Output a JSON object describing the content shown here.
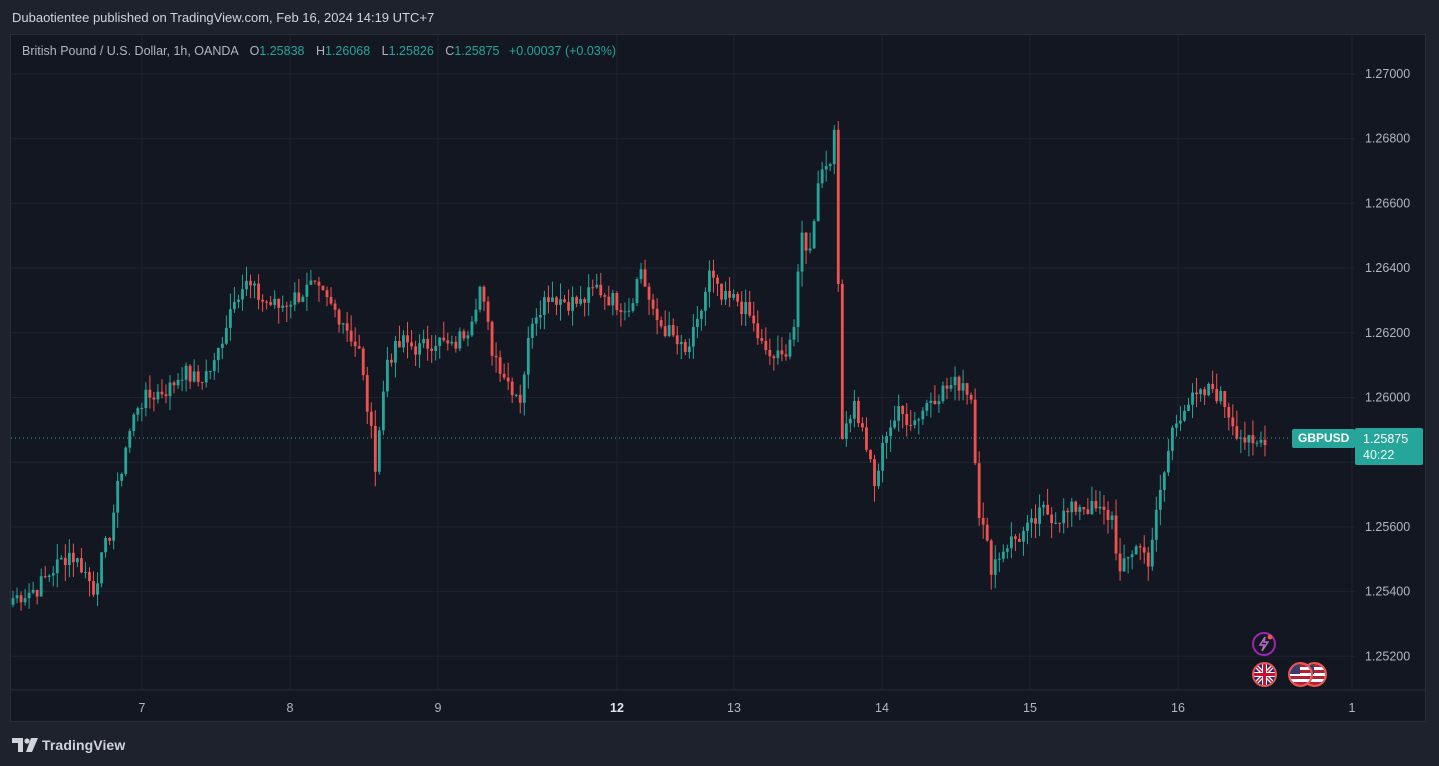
{
  "header": {
    "publish_line": "Dubaotientee published on TradingView.com, Feb 16, 2024 14:19 UTC+7"
  },
  "legend": {
    "symbol": "British Pound / U.S. Dollar, 1h, OANDA",
    "open_label": "O",
    "open": "1.25838",
    "high_label": "H",
    "high": "1.26068",
    "low_label": "L",
    "low": "1.25826",
    "close_label": "C",
    "close": "1.25875",
    "change": "+0.00037 (+0.03%)"
  },
  "price_tag": {
    "symbol": "GBPUSD",
    "price": "1.25875",
    "countdown": "40:22"
  },
  "footer": {
    "brand": "TradingView"
  },
  "colors": {
    "up": "#26a69a",
    "down": "#ef5350",
    "background": "#131722",
    "grid": "#1f2330"
  },
  "chart_data": {
    "type": "candlestick",
    "y_ticks": [
      "1.27000",
      "1.26800",
      "1.26600",
      "1.26400",
      "1.26200",
      "1.26000",
      "1.25600",
      "1.25400",
      "1.25200"
    ],
    "y_tick_values": [
      1.27,
      1.268,
      1.266,
      1.264,
      1.262,
      1.26,
      1.256,
      1.254,
      1.252
    ],
    "ylim": [
      1.2512,
      1.2717
    ],
    "x_ticks": [
      {
        "label": "7",
        "bold": false
      },
      {
        "label": "8",
        "bold": false
      },
      {
        "label": "9",
        "bold": false
      },
      {
        "label": "12",
        "bold": true
      },
      {
        "label": "13",
        "bold": false
      },
      {
        "label": "14",
        "bold": false
      },
      {
        "label": "15",
        "bold": false
      },
      {
        "label": "16",
        "bold": false
      },
      {
        "label": "1",
        "bold": false
      }
    ],
    "current_price": 1.25875,
    "anchors": [
      [
        0,
        1.2538
      ],
      [
        6,
        1.2541
      ],
      [
        10,
        1.2547
      ],
      [
        14,
        1.2552
      ],
      [
        17,
        1.2548
      ],
      [
        20,
        1.2541
      ],
      [
        24,
        1.2558
      ],
      [
        28,
        1.2585
      ],
      [
        31,
        1.2598
      ],
      [
        35,
        1.2601
      ],
      [
        39,
        1.2603
      ],
      [
        42,
        1.2608
      ],
      [
        46,
        1.2605
      ],
      [
        50,
        1.261
      ],
      [
        55,
        1.2632
      ],
      [
        58,
        1.2635
      ],
      [
        62,
        1.263
      ],
      [
        66,
        1.2628
      ],
      [
        70,
        1.2631
      ],
      [
        74,
        1.2634
      ],
      [
        77,
        1.2631
      ],
      [
        82,
        1.2624
      ],
      [
        86,
        1.2614
      ],
      [
        90,
        1.258
      ],
      [
        93,
        1.2612
      ],
      [
        97,
        1.2617
      ],
      [
        101,
        1.2615
      ],
      [
        105,
        1.2618
      ],
      [
        109,
        1.2615
      ],
      [
        113,
        1.2622
      ],
      [
        116,
        1.2634
      ],
      [
        119,
        1.2615
      ],
      [
        123,
        1.2605
      ],
      [
        126,
        1.26
      ],
      [
        129,
        1.2625
      ],
      [
        133,
        1.2632
      ],
      [
        137,
        1.263
      ],
      [
        141,
        1.2629
      ],
      [
        145,
        1.2634
      ],
      [
        149,
        1.263
      ],
      [
        153,
        1.2628
      ],
      [
        156,
        1.264
      ],
      [
        159,
        1.2625
      ],
      [
        163,
        1.262
      ],
      [
        167,
        1.2613
      ],
      [
        170,
        1.2622
      ],
      [
        173,
        1.2638
      ],
      [
        176,
        1.263
      ],
      [
        180,
        1.263
      ],
      [
        183,
        1.2625
      ],
      [
        187,
        1.2613
      ],
      [
        191,
        1.2612
      ],
      [
        194,
        1.2622
      ],
      [
        196,
        1.265
      ],
      [
        198,
        1.2645
      ],
      [
        200,
        1.2668
      ],
      [
        203,
        1.2675
      ],
      [
        204,
        1.268
      ],
      [
        206,
        1.259
      ],
      [
        209,
        1.2598
      ],
      [
        212,
        1.2585
      ],
      [
        214,
        1.2572
      ],
      [
        217,
        1.259
      ],
      [
        220,
        1.2595
      ],
      [
        224,
        1.2593
      ],
      [
        228,
        1.26
      ],
      [
        232,
        1.2603
      ],
      [
        236,
        1.2605
      ],
      [
        238,
        1.26
      ],
      [
        240,
        1.2565
      ],
      [
        243,
        1.2548
      ],
      [
        247,
        1.2555
      ],
      [
        250,
        1.2557
      ],
      [
        253,
        1.256
      ],
      [
        256,
        1.2565
      ],
      [
        259,
        1.2563
      ],
      [
        262,
        1.2564
      ],
      [
        265,
        1.2567
      ],
      [
        269,
        1.2565
      ],
      [
        273,
        1.2563
      ],
      [
        275,
        1.2545
      ],
      [
        279,
        1.2555
      ],
      [
        282,
        1.255
      ],
      [
        285,
        1.257
      ],
      [
        288,
        1.259
      ],
      [
        291,
        1.2598
      ],
      [
        295,
        1.26
      ],
      [
        298,
        1.2603
      ],
      [
        301,
        1.2598
      ],
      [
        304,
        1.259
      ],
      [
        308,
        1.2584
      ],
      [
        311,
        1.2588
      ]
    ]
  }
}
